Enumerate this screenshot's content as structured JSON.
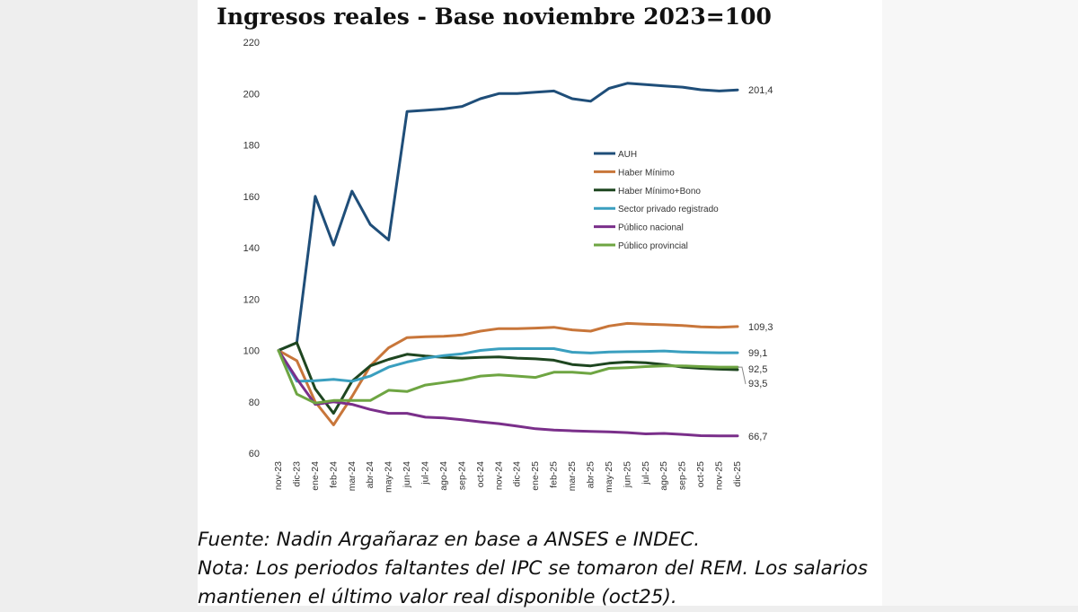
{
  "chart_data": {
    "type": "line",
    "title": "Ingresos reales - Base noviembre 2023=100",
    "ylim": [
      60,
      220
    ],
    "yticks": [
      60,
      80,
      100,
      120,
      140,
      160,
      180,
      200,
      220
    ],
    "categories": [
      "nov-23",
      "dic-23",
      "ene-24",
      "feb-24",
      "mar-24",
      "abr-24",
      "may-24",
      "jun-24",
      "jul-24",
      "ago-24",
      "sep-24",
      "oct-24",
      "nov-24",
      "dic-24",
      "ene-25",
      "feb-25",
      "mar-25",
      "abr-25",
      "may-25",
      "jun-25",
      "jul-25",
      "ago-25",
      "sep-25",
      "oct-25",
      "nov-25",
      "dic-25"
    ],
    "legend_position": "middle-right",
    "series": [
      {
        "name": "AUH",
        "color": "#1f4e79",
        "end_label": "201,4",
        "values": [
          100,
          103,
          160,
          141,
          162,
          149,
          143,
          193,
          193.5,
          194,
          195,
          198,
          200,
          200,
          200.5,
          201,
          198,
          197,
          202,
          204,
          203.5,
          203,
          202.5,
          201.5,
          201,
          201.4
        ]
      },
      {
        "name": "Haber Mínimo",
        "color": "#c8763a",
        "end_label": "109,3",
        "values": [
          100,
          96,
          80,
          71,
          82,
          94,
          101,
          105,
          105.3,
          105.5,
          106,
          107.5,
          108.5,
          108.5,
          108.7,
          109,
          108,
          107.5,
          109.5,
          110.5,
          110.2,
          110,
          109.7,
          109.2,
          109,
          109.3
        ]
      },
      {
        "name": "Haber Mínimo+Bono",
        "color": "#1e4620",
        "end_label": "92,5",
        "values": [
          100,
          103,
          85,
          75.5,
          88,
          94,
          96.5,
          98.5,
          97.8,
          97.3,
          97,
          97.3,
          97.5,
          97,
          96.7,
          96.2,
          94.5,
          94,
          95,
          95.5,
          95.2,
          94.5,
          93.5,
          93,
          92.7,
          92.5
        ]
      },
      {
        "name": "Sector privado registrado",
        "color": "#3a9fbf",
        "end_label": "99,1",
        "values": [
          100,
          88,
          88.2,
          88.7,
          88,
          90,
          93.5,
          95.5,
          97,
          98,
          98.7,
          100,
          100.6,
          100.7,
          100.7,
          100.7,
          99.3,
          99,
          99.4,
          99.5,
          99.6,
          99.8,
          99.4,
          99.2,
          99.1,
          99.1
        ]
      },
      {
        "name": "Público nacional",
        "color": "#7a2f8a",
        "end_label": "66,7",
        "values": [
          100,
          89,
          79,
          80,
          79,
          77,
          75.5,
          75.5,
          74,
          73.7,
          73,
          72.2,
          71.5,
          70.5,
          69.5,
          69,
          68.7,
          68.5,
          68.3,
          68,
          67.5,
          67.7,
          67.3,
          66.8,
          66.7,
          66.7
        ]
      },
      {
        "name": "Público provincial",
        "color": "#6ea542",
        "end_label": "93,5",
        "values": [
          100,
          83,
          79.5,
          80.5,
          80.5,
          80.5,
          84.5,
          84,
          86.5,
          87.5,
          88.5,
          90,
          90.5,
          90,
          89.5,
          91.5,
          91.5,
          91,
          93,
          93.3,
          93.7,
          94,
          94,
          93.7,
          93.5,
          93.5
        ]
      }
    ]
  },
  "footer": {
    "source": "Fuente: Nadin Argañaraz en base a ANSES e INDEC.",
    "note_line1": "Nota: Los periodos faltantes del IPC se tomaron del REM. Los salarios",
    "note_line2": "mantienen el último valor real disponible (oct25)."
  }
}
